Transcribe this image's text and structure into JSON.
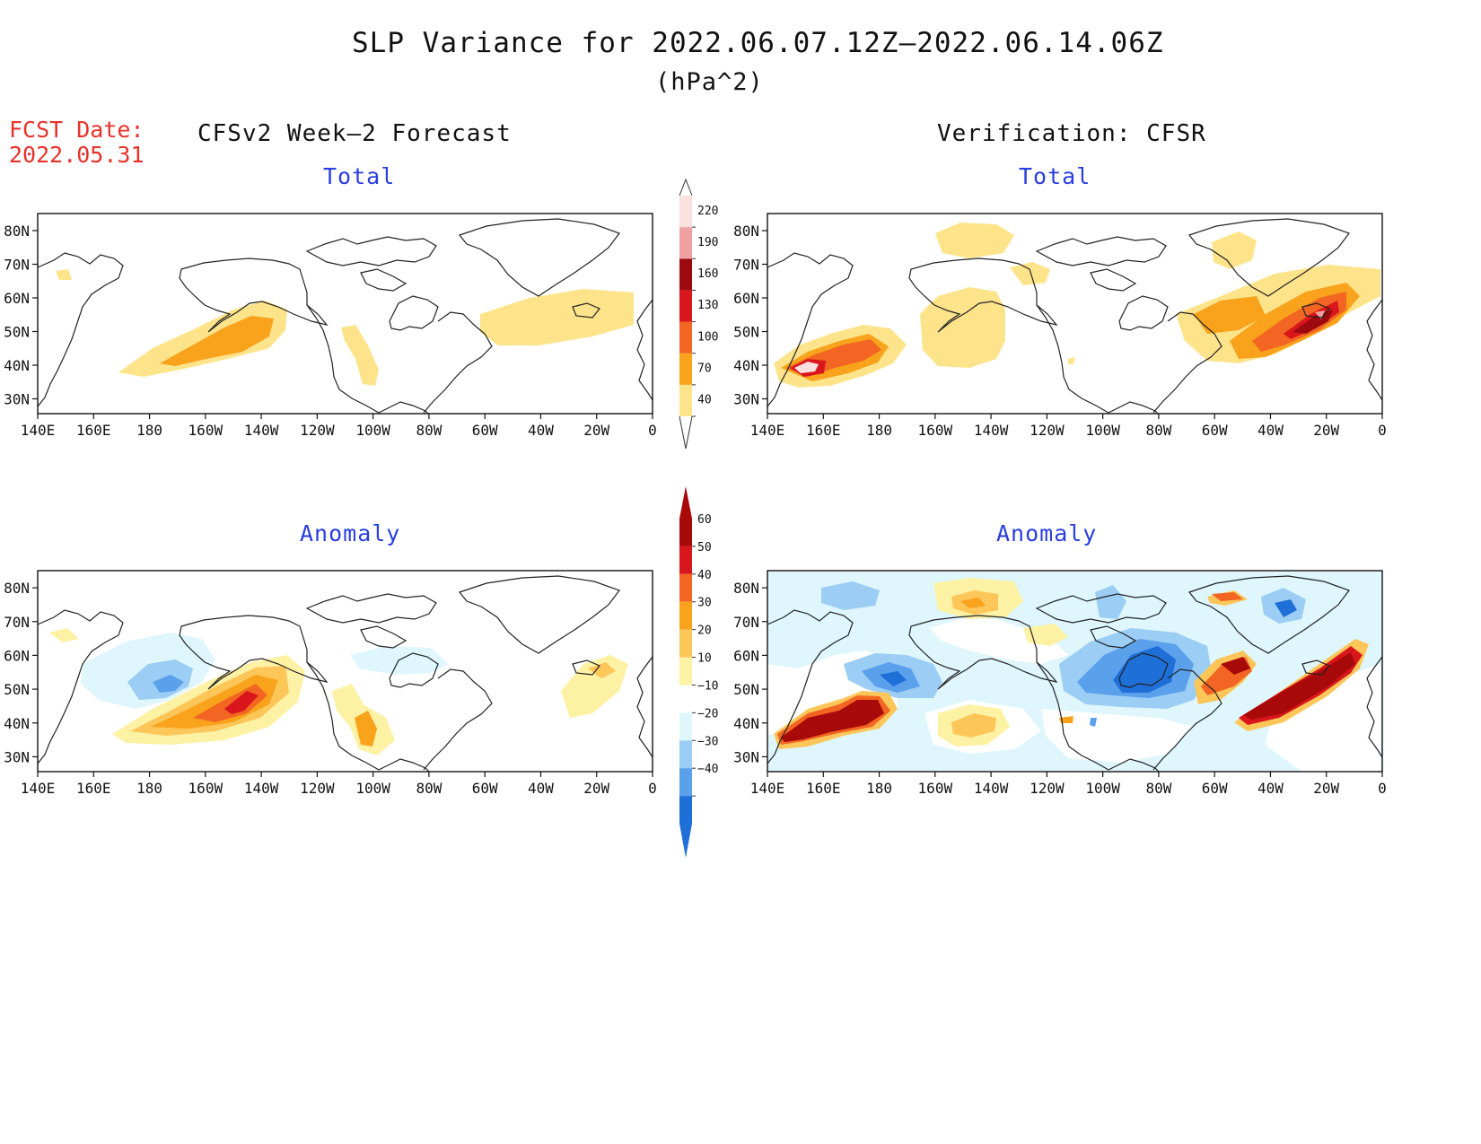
{
  "header": {
    "title": "SLP Variance for 2022.06.07.12Z—2022.06.14.06Z",
    "units": "(hPa^2)",
    "fcst_label": "FCST Date:",
    "fcst_date": "2022.05.31"
  },
  "columns": {
    "left_title": "CFSv2 Week—2 Forecast",
    "right_title": "Verification: CFSR"
  },
  "rows": {
    "top_label": "Total",
    "bottom_label": "Anomaly"
  },
  "axes": {
    "lon_ticks": [
      "140E",
      "160E",
      "180",
      "160W",
      "140W",
      "120W",
      "100W",
      "80W",
      "60W",
      "40W",
      "20W",
      "0"
    ],
    "lat_ticks": [
      "80N",
      "70N",
      "60N",
      "50N",
      "40N",
      "30N"
    ]
  },
  "colorbars": {
    "total": {
      "levels": [
        "40",
        "70",
        "100",
        "130",
        "160",
        "190",
        "220"
      ],
      "colors": [
        "#fde38a",
        "#f9a21c",
        "#f26522",
        "#d8161c",
        "#9c0a0f",
        "#f0a0a0",
        "#fbe0e0"
      ]
    },
    "anomaly": {
      "levels": [
        "60",
        "50",
        "40",
        "30",
        "20",
        "10",
        "−10",
        "−20",
        "−30",
        "−40"
      ],
      "colors": [
        "#a80a0a",
        "#d8161c",
        "#f26522",
        "#f9a21c",
        "#fdc659",
        "#fdf1a4",
        "#ffffff",
        "#dff6fd",
        "#9bcdf5",
        "#5aa0eb",
        "#1f6fd8"
      ]
    }
  }
}
